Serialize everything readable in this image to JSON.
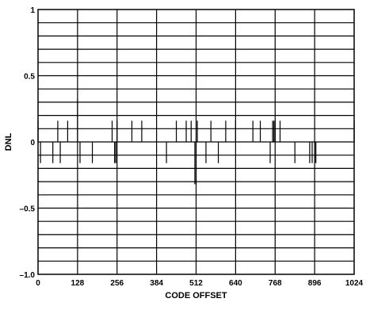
{
  "chart_data": {
    "type": "bar",
    "title": "",
    "xlabel": "CODE OFFSET",
    "ylabel": "DNL",
    "xlim": [
      0,
      1024
    ],
    "ylim": [
      -1.0,
      1.0
    ],
    "x_ticks": [
      0,
      128,
      256,
      384,
      512,
      640,
      768,
      896,
      1024
    ],
    "x_tick_labels": [
      "0",
      "128",
      "256",
      "384",
      "512",
      "640",
      "768",
      "896",
      "1024"
    ],
    "y_ticks": [
      -1.0,
      -0.5,
      0,
      0.5,
      1
    ],
    "y_tick_labels": [
      "–1.0",
      "–0.5",
      "0",
      "0.5",
      "1"
    ],
    "grid": true,
    "legend": "none",
    "line_color": "#000000",
    "series": [
      {
        "values": [
          {
            "x": 0,
            "y": 0.16
          },
          {
            "x": 8,
            "y": -0.16
          },
          {
            "x": 48,
            "y": -0.16
          },
          {
            "x": 64,
            "y": 0.16
          },
          {
            "x": 72,
            "y": -0.16
          },
          {
            "x": 96,
            "y": 0.16
          },
          {
            "x": 128,
            "y": 0.32
          },
          {
            "x": 136,
            "y": -0.16
          },
          {
            "x": 176,
            "y": -0.16
          },
          {
            "x": 240,
            "y": 0.16
          },
          {
            "x": 248,
            "y": -0.16
          },
          {
            "x": 252,
            "y": -0.16
          },
          {
            "x": 256,
            "y": 0.16
          },
          {
            "x": 304,
            "y": 0.16
          },
          {
            "x": 336,
            "y": 0.16
          },
          {
            "x": 416,
            "y": -0.16
          },
          {
            "x": 448,
            "y": 0.16
          },
          {
            "x": 480,
            "y": 0.16
          },
          {
            "x": 496,
            "y": 0.16
          },
          {
            "x": 508,
            "y": -0.32
          },
          {
            "x": 512,
            "y": -0.32
          },
          {
            "x": 516,
            "y": 0.16
          },
          {
            "x": 544,
            "y": -0.16
          },
          {
            "x": 560,
            "y": 0.16
          },
          {
            "x": 584,
            "y": -0.16
          },
          {
            "x": 608,
            "y": 0.16
          },
          {
            "x": 640,
            "y": 0.16
          },
          {
            "x": 696,
            "y": 0.16
          },
          {
            "x": 720,
            "y": 0.16
          },
          {
            "x": 752,
            "y": -0.16
          },
          {
            "x": 760,
            "y": 0.16
          },
          {
            "x": 764,
            "y": 0.16
          },
          {
            "x": 768,
            "y": 0.16
          },
          {
            "x": 784,
            "y": 0.16
          },
          {
            "x": 832,
            "y": -0.16
          },
          {
            "x": 880,
            "y": -0.16
          },
          {
            "x": 888,
            "y": -0.16
          },
          {
            "x": 896,
            "y": -0.16
          },
          {
            "x": 900,
            "y": -0.16
          },
          {
            "x": 1024,
            "y": 0.16
          }
        ]
      }
    ]
  }
}
